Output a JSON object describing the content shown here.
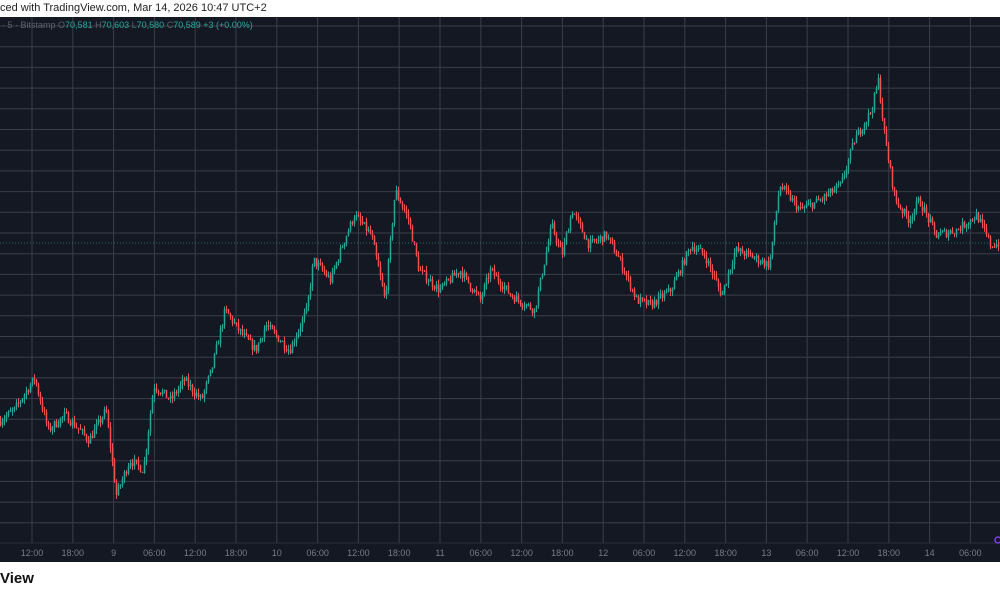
{
  "header": {
    "caption": "ced with TradingView.com, Mar 14, 2026 10:47 UTC+2"
  },
  "legend": {
    "symbol_info": "· 5 · Bitstamp",
    "open_label": "O",
    "open": "70,581",
    "high_label": "H",
    "high": "70,603",
    "low_label": "L",
    "low": "70,580",
    "close_label": "C",
    "close": "70,589",
    "change": "+3 (+0.00%)"
  },
  "footer": {
    "logo_text": "View"
  },
  "colors": {
    "background": "#141823",
    "grid": "#3a3e4a",
    "up": "#26a69a",
    "down": "#ef5350",
    "axis_text": "#787b86",
    "accent": "#7b3fe4"
  },
  "chart_data": {
    "type": "candlestick",
    "interval": "5",
    "exchange": "Bitstamp",
    "last_close": 70589,
    "ylim": [
      69300,
      71450
    ],
    "grid": true,
    "x_ticks": [
      "12:00",
      "18:00",
      "9",
      "06:00",
      "12:00",
      "18:00",
      "10",
      "06:00",
      "12:00",
      "18:00",
      "11",
      "06:00",
      "12:00",
      "18:00",
      "12",
      "06:00",
      "12:00",
      "18:00",
      "13",
      "06:00",
      "12:00",
      "18:00",
      "14",
      "06:00"
    ],
    "price_path": [
      [
        "Mar 8 07:30",
        69739
      ],
      [
        "Mar 8 09:30",
        69787
      ],
      [
        "Mar 8 12:30",
        69941
      ],
      [
        "Mar 8 14:30",
        69691
      ],
      [
        "Mar 8 17:00",
        69763
      ],
      [
        "Mar 8 20:30",
        69643
      ],
      [
        "Mar 8 23:00",
        69787
      ],
      [
        "Mar 9 00:30",
        69379
      ],
      [
        "Mar 9 02:30",
        69547
      ],
      [
        "Mar 9 04:30",
        69499
      ],
      [
        "Mar 9 06:00",
        69907
      ],
      [
        "Mar 9 08:30",
        69835
      ],
      [
        "Mar 9 10:30",
        69931
      ],
      [
        "Mar 9 13:00",
        69835
      ],
      [
        "Mar 9 14:30",
        69979
      ],
      [
        "Mar 9 16:30",
        70267
      ],
      [
        "Mar 9 18:30",
        70171
      ],
      [
        "Mar 9 21:00",
        70075
      ],
      [
        "Mar 9 22:30",
        70195
      ],
      [
        "Mar 10 02:00",
        70075
      ],
      [
        "Mar 10 04:30",
        70267
      ],
      [
        "Mar 10 05:30",
        70507
      ],
      [
        "Mar 10 08:00",
        70411
      ],
      [
        "Mar 10 10:00",
        70603
      ],
      [
        "Mar 10 11:30",
        70723
      ],
      [
        "Mar 10 14:00",
        70627
      ],
      [
        "Mar 10 16:00",
        70315
      ],
      [
        "Mar 10 17:30",
        70843
      ],
      [
        "Mar 10 19:30",
        70699
      ],
      [
        "Mar 10 21:00",
        70459
      ],
      [
        "Mar 11 00:00",
        70363
      ],
      [
        "Mar 11 03:00",
        70459
      ],
      [
        "Mar 11 06:00",
        70315
      ],
      [
        "Mar 11 07:30",
        70459
      ],
      [
        "Mar 11 10:30",
        70339
      ],
      [
        "Mar 11 14:00",
        70267
      ],
      [
        "Mar 11 16:30",
        70675
      ],
      [
        "Mar 11 18:00",
        70531
      ],
      [
        "Mar 11 19:30",
        70747
      ],
      [
        "Mar 11 22:00",
        70579
      ],
      [
        "Mar 12 00:30",
        70627
      ],
      [
        "Mar 12 02:30",
        70507
      ],
      [
        "Mar 12 05:00",
        70315
      ],
      [
        "Mar 12 07:00",
        70291
      ],
      [
        "Mar 12 10:00",
        70363
      ],
      [
        "Mar 12 13:00",
        70579
      ],
      [
        "Mar 12 15:00",
        70531
      ],
      [
        "Mar 12 17:30",
        70339
      ],
      [
        "Mar 12 19:30",
        70555
      ],
      [
        "Mar 12 21:30",
        70531
      ],
      [
        "Mar 13 00:30",
        70483
      ],
      [
        "Mar 13 02:00",
        70867
      ],
      [
        "Mar 13 05:00",
        70747
      ],
      [
        "Mar 13 08:00",
        70795
      ],
      [
        "Mar 13 11:00",
        70867
      ],
      [
        "Mar 13 13:00",
        71083
      ],
      [
        "Mar 13 15:30",
        71227
      ],
      [
        "Mar 13 16:30",
        71371
      ],
      [
        "Mar 13 17:30",
        71083
      ],
      [
        "Mar 13 19:00",
        70795
      ],
      [
        "Mar 13 21:00",
        70699
      ],
      [
        "Mar 13 22:30",
        70795
      ],
      [
        "Mar 14 01:00",
        70627
      ],
      [
        "Mar 14 04:00",
        70651
      ],
      [
        "Mar 14 07:00",
        70723
      ],
      [
        "Mar 14 09:00",
        70579
      ],
      [
        "Mar 14 10:30",
        70589
      ]
    ]
  }
}
